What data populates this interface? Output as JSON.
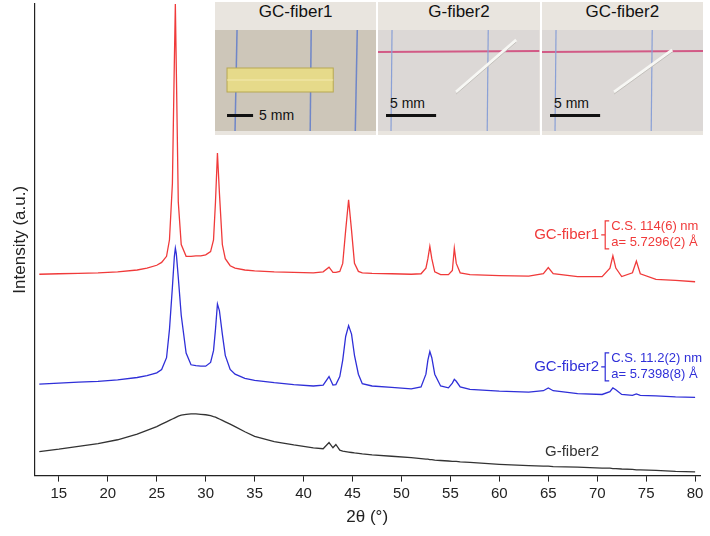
{
  "chart_data": {
    "type": "line",
    "x_label": "2θ (°)",
    "y_label": "Intensity (a.u.)",
    "x": [
      13,
      15,
      17,
      19,
      21,
      23,
      24,
      25,
      25.5,
      26,
      26.3,
      26.6,
      26.8,
      26.9,
      27.0,
      27.2,
      27.5,
      28,
      28.5,
      29,
      29.5,
      30,
      30.5,
      30.8,
      31.0,
      31.2,
      31.4,
      31.7,
      32,
      32.5,
      33,
      34,
      35,
      37,
      39,
      41,
      42,
      42.6,
      43,
      43.3,
      43.7,
      44,
      44.3,
      44.6,
      44.9,
      45.2,
      45.6,
      46,
      47,
      49,
      51,
      52,
      52.5,
      52.7,
      52.9,
      53.1,
      53.4,
      54,
      54.8,
      55.2,
      55.4,
      55.6,
      56,
      57,
      60,
      63,
      64.5,
      65,
      65.5,
      68,
      70.5,
      71.3,
      71.6,
      71.9,
      72.5,
      73.6,
      74,
      74.4,
      76,
      78,
      80
    ],
    "xlim": [
      12.5,
      80.5
    ],
    "xticks": [
      15,
      20,
      25,
      30,
      35,
      40,
      45,
      50,
      55,
      60,
      65,
      70,
      75,
      80
    ],
    "ylim": [
      0,
      100
    ],
    "grid": false,
    "tick_labels": "x",
    "series": [
      {
        "name": "GC-fiber1",
        "color": "#f03a3a",
        "annotations": [
          "C.S. 114(6) nm",
          "a= 5.7296(2) Å"
        ],
        "values": [
          42.7,
          42.8,
          42.9,
          43.0,
          43.2,
          43.6,
          44.0,
          44.6,
          45.2,
          46.5,
          50,
          62,
          88,
          100,
          86,
          58,
          49,
          46.5,
          46.5,
          46.6,
          46.6,
          46.8,
          47.5,
          50,
          58,
          68.4,
          60,
          49,
          46,
          44.5,
          44,
          43.6,
          43.4,
          43.2,
          43.1,
          43.0,
          43.2,
          44.2,
          43.1,
          43.1,
          43.3,
          45,
          52,
          58.5,
          52,
          45,
          43.3,
          43.0,
          42.9,
          42.8,
          42.7,
          42.8,
          44,
          46,
          48.6,
          46,
          43.2,
          42.6,
          42.6,
          43.5,
          48.2,
          45,
          43,
          42.6,
          42.4,
          42.3,
          42.8,
          44.1,
          42.8,
          42.2,
          42.2,
          44,
          46.6,
          44,
          42.2,
          43,
          45.5,
          42.8,
          41.6,
          41.4,
          41.1
        ]
      },
      {
        "name": "GC-fiber2",
        "color": "#2f2fd8",
        "annotations": [
          "C.S. 11.2(2) nm",
          "a= 5.7398(8) Å"
        ],
        "values": [
          19.4,
          19.6,
          19.8,
          20.0,
          20.3,
          20.8,
          21.2,
          21.8,
          22.5,
          25,
          31,
          40,
          46.5,
          48.2,
          47,
          42,
          34,
          26,
          23.5,
          23.3,
          23.2,
          23.2,
          24,
          26.5,
          31,
          36.4,
          35,
          30,
          25.5,
          22.5,
          21.5,
          20.6,
          20.2,
          19.7,
          19.3,
          19.0,
          19.2,
          21,
          19.2,
          19.3,
          21,
          24.5,
          29.5,
          31.8,
          30,
          25.5,
          21.5,
          19.5,
          19,
          18.7,
          18.4,
          18.8,
          21.5,
          24.5,
          26.3,
          25,
          21.5,
          19,
          18.6,
          19.6,
          20.4,
          20,
          18.8,
          18.3,
          17.9,
          17.7,
          18.0,
          18.6,
          18,
          17.4,
          17.2,
          17.8,
          18.6,
          18.2,
          17.2,
          17.0,
          17.3,
          17.0,
          16.9,
          16.7,
          16.6
        ]
      },
      {
        "name": "G-fiber2",
        "color": "#333333",
        "values": [
          5.1,
          5.6,
          6.2,
          6.8,
          7.6,
          8.8,
          9.6,
          10.4,
          10.9,
          11.4,
          11.7,
          12.0,
          12.2,
          12.3,
          12.4,
          12.6,
          12.8,
          13.0,
          13.1,
          13.1,
          13.0,
          12.9,
          12.7,
          12.5,
          12.4,
          12.2,
          12.0,
          11.7,
          11.4,
          10.9,
          10.4,
          9.3,
          8.3,
          7.2,
          6.5,
          5.9,
          5.7,
          7.0,
          5.9,
          6.6,
          5.4,
          5.2,
          5.1,
          5.0,
          4.9,
          4.8,
          4.7,
          4.6,
          4.4,
          4.1,
          3.8,
          3.6,
          3.5,
          3.5,
          3.4,
          3.4,
          3.3,
          3.2,
          3.1,
          3.0,
          3.0,
          3.0,
          2.9,
          2.8,
          2.4,
          2.1,
          2.0,
          2.0,
          1.9,
          1.8,
          1.6,
          1.6,
          1.5,
          1.5,
          1.4,
          1.3,
          1.2,
          1.2,
          1.1,
          0.9,
          0.8
        ]
      }
    ],
    "inset": {
      "panels": [
        {
          "title": "GC-fiber1",
          "scale_bar": "5 mm"
        },
        {
          "title": "G-fiber2",
          "scale_bar": "5 mm"
        },
        {
          "title": "GC-fiber2",
          "scale_bar": "5 mm"
        }
      ]
    }
  }
}
